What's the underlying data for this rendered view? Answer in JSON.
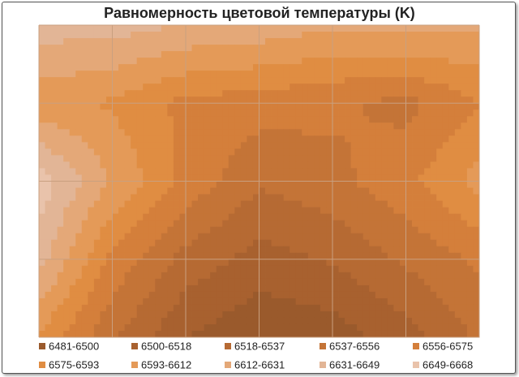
{
  "chart_data": {
    "type": "contour",
    "title": "Равномерность цветовой температуры (K)",
    "grid": true,
    "z": [
      [
        6640,
        6640,
        6630,
        6625,
        6615,
        6620,
        6615
      ],
      [
        6600,
        6590,
        6570,
        6565,
        6560,
        6550,
        6575
      ],
      [
        6660,
        6610,
        6570,
        6540,
        6550,
        6570,
        6600
      ],
      [
        6640,
        6570,
        6530,
        6510,
        6520,
        6540,
        6560
      ],
      [
        6590,
        6540,
        6500,
        6485,
        6490,
        6510,
        6540
      ]
    ],
    "levels": [
      6481,
      6500,
      6518,
      6537,
      6556,
      6575,
      6593,
      6612,
      6631,
      6649,
      6668
    ],
    "legend": [
      {
        "label": "6481-6500",
        "color": "#9a5a2c"
      },
      {
        "label": "6500-6518",
        "color": "#a8612f"
      },
      {
        "label": "6518-6537",
        "color": "#b66a33"
      },
      {
        "label": "6537-6556",
        "color": "#c47437"
      },
      {
        "label": "6556-6575",
        "color": "#d47f3b"
      },
      {
        "label": "6575-6593",
        "color": "#e08d42"
      },
      {
        "label": "6593-6612",
        "color": "#e49a58"
      },
      {
        "label": "6612-6631",
        "color": "#e4a878"
      },
      {
        "label": "6631-6649",
        "color": "#e2b596"
      },
      {
        "label": "6649-6668",
        "color": "#e9c3ab"
      }
    ]
  }
}
